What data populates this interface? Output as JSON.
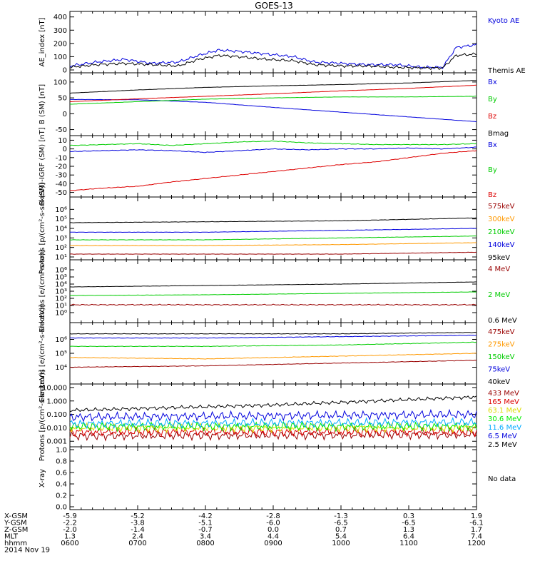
{
  "title": "GOES-13",
  "colors": {
    "blue": "#0000dd",
    "green": "#00cc00",
    "red": "#dd0000",
    "black": "#000000",
    "orange": "#ff9900",
    "darkred": "#990000",
    "yellow": "#dddd00",
    "cyan": "#00aaff",
    "purple": "#880088",
    "brightgreen": "#00ee00"
  },
  "chart_data": [
    {
      "type": "line",
      "ylabel": "AE_index [nT]",
      "ylim": [
        0,
        420
      ],
      "yscale": "linear",
      "yticks": [
        "400",
        "300",
        "200",
        "100",
        "0"
      ],
      "ytick_values": [
        400,
        300,
        200,
        100,
        0
      ],
      "series": [
        {
          "name": "Kyoto AE",
          "color": "#0000dd",
          "x": [
            6.0,
            6.4,
            6.8,
            7.2,
            7.6,
            7.9,
            8.2,
            8.5,
            8.9,
            9.3,
            9.6,
            10.0,
            10.4,
            10.8,
            11.2,
            11.5,
            11.7,
            12.0
          ],
          "y": [
            30,
            60,
            80,
            50,
            60,
            110,
            150,
            140,
            120,
            100,
            60,
            50,
            40,
            40,
            20,
            20,
            170,
            190
          ]
        },
        {
          "name": "Themis AE",
          "color": "#000000",
          "x": [
            6.0,
            6.4,
            6.8,
            7.2,
            7.6,
            7.9,
            8.2,
            8.5,
            8.9,
            9.3,
            9.6,
            10.0,
            10.4,
            10.8,
            11.2,
            11.5,
            11.7,
            12.0
          ],
          "y": [
            20,
            40,
            50,
            40,
            30,
            80,
            110,
            100,
            80,
            70,
            40,
            30,
            30,
            20,
            15,
            15,
            110,
            120
          ]
        }
      ]
    },
    {
      "type": "line",
      "ylabel": "B (SM) [nT]",
      "ylim": [
        -60,
        120
      ],
      "yscale": "linear",
      "yticks": [
        "100",
        "50",
        "0",
        "-50"
      ],
      "ytick_values": [
        100,
        50,
        0,
        -50
      ],
      "series": [
        {
          "name": "Bx",
          "color": "#0000dd",
          "x": [
            6,
            7,
            8,
            9,
            10,
            11,
            12
          ],
          "y": [
            45,
            44,
            36,
            20,
            5,
            -10,
            -25
          ]
        },
        {
          "name": "By",
          "color": "#00cc00",
          "x": [
            6,
            7,
            8,
            9,
            10,
            11,
            12
          ],
          "y": [
            30,
            38,
            46,
            50,
            53,
            53,
            55
          ]
        },
        {
          "name": "Bz",
          "color": "#dd0000",
          "x": [
            6,
            7,
            8,
            9,
            10,
            11,
            12
          ],
          "y": [
            38,
            47,
            55,
            63,
            72,
            80,
            90
          ]
        },
        {
          "name": "Bmag",
          "color": "#000000",
          "x": [
            6,
            7,
            8,
            9,
            10,
            11,
            12
          ],
          "y": [
            65,
            75,
            83,
            88,
            92,
            97,
            105
          ]
        }
      ]
    },
    {
      "type": "line",
      "ylabel": "B (SM)-IGRF (SM) [nT]",
      "ylim": [
        -52,
        12
      ],
      "yscale": "linear",
      "yticks": [
        "10",
        "0",
        "-10",
        "-20",
        "-30",
        "-40",
        "-50"
      ],
      "ytick_values": [
        10,
        0,
        -10,
        -20,
        -30,
        -40,
        -50
      ],
      "series": [
        {
          "name": "Bx",
          "color": "#0000dd",
          "x": [
            6,
            6.5,
            7,
            7.5,
            8,
            8.5,
            9,
            9.5,
            10,
            10.5,
            11,
            11.5,
            12
          ],
          "y": [
            -3,
            -2,
            -1,
            -2,
            -4,
            -2,
            0,
            -1,
            0,
            0,
            1,
            0,
            2
          ]
        },
        {
          "name": "By",
          "color": "#00cc00",
          "x": [
            6,
            6.5,
            7,
            7.5,
            8,
            8.5,
            9,
            9.5,
            10,
            10.5,
            11,
            11.5,
            12
          ],
          "y": [
            4,
            5,
            6,
            4,
            6,
            8,
            9,
            7,
            6,
            5,
            5,
            5,
            6
          ]
        },
        {
          "name": "Bz",
          "color": "#dd0000",
          "x": [
            6,
            6.5,
            7,
            7.5,
            8,
            8.5,
            9,
            9.5,
            10,
            10.5,
            11,
            11.5,
            12
          ],
          "y": [
            -48,
            -45,
            -43,
            -38,
            -34,
            -30,
            -26,
            -22,
            -18,
            -15,
            -10,
            -5,
            -2
          ]
        }
      ]
    },
    {
      "type": "line",
      "ylabel": "Protons [p/(cm²-s-sr-keV)]",
      "ylim": [
        1,
        7
      ],
      "yscale": "log",
      "yticks": [
        "10⁶",
        "10⁵",
        "10⁴",
        "10³",
        "10²",
        "10¹"
      ],
      "ytick_values": [
        6,
        5,
        4,
        3,
        2,
        1
      ],
      "series": [
        {
          "name": "575keV",
          "color": "#990000",
          "x": [
            6,
            8,
            10,
            12
          ],
          "y": [
            1.3,
            1.3,
            1.3,
            1.5
          ]
        },
        {
          "name": "300keV",
          "color": "#ff9900",
          "x": [
            6,
            8,
            10,
            12
          ],
          "y": [
            2.2,
            2.2,
            2.3,
            2.5
          ]
        },
        {
          "name": "210keV",
          "color": "#00cc00",
          "x": [
            6,
            8,
            10,
            12
          ],
          "y": [
            2.8,
            2.8,
            3.0,
            3.2
          ]
        },
        {
          "name": "140keV",
          "color": "#0000dd",
          "x": [
            6,
            8,
            10,
            12
          ],
          "y": [
            3.6,
            3.6,
            3.8,
            4.0
          ]
        },
        {
          "name": "95keV",
          "color": "#000000",
          "x": [
            6,
            8,
            10,
            12
          ],
          "y": [
            4.6,
            4.7,
            4.8,
            5.1
          ]
        }
      ]
    },
    {
      "type": "line",
      "ylabel": "Electrons [e/(cm²-s-sr)]",
      "ylim": [
        -1,
        7
      ],
      "yscale": "log",
      "yticks": [
        "10⁶",
        "10⁵",
        "10⁴",
        "10³",
        "10²",
        "10¹",
        "10⁰"
      ],
      "ytick_values": [
        6,
        5,
        4,
        3,
        2,
        1,
        0
      ],
      "series": [
        {
          "name": "4 MeV",
          "color": "#990000",
          "x": [
            6,
            8,
            10,
            12
          ],
          "y": [
            1.1,
            1.1,
            1.1,
            1.1
          ]
        },
        {
          "name": "2 MeV",
          "color": "#00cc00",
          "x": [
            6,
            8,
            10,
            12
          ],
          "y": [
            2.4,
            2.5,
            2.7,
            2.9
          ]
        },
        {
          "name": "0.6 MeV",
          "color": "#000000",
          "x": [
            6,
            8,
            10,
            12
          ],
          "y": [
            3.6,
            3.8,
            4.0,
            4.3
          ]
        }
      ]
    },
    {
      "type": "line",
      "ylabel": "Electrons [e/(cm²-s-sr-keV)]",
      "ylim": [
        3,
        7
      ],
      "yscale": "log",
      "yticks": [
        "10⁶",
        "10⁵",
        "10⁴"
      ],
      "ytick_values": [
        6,
        5,
        4
      ],
      "series": [
        {
          "name": "475keV",
          "color": "#990000",
          "x": [
            6,
            8,
            10,
            12
          ],
          "y": [
            4.0,
            4.1,
            4.3,
            4.5
          ]
        },
        {
          "name": "275keV",
          "color": "#ff9900",
          "x": [
            6,
            8,
            10,
            12
          ],
          "y": [
            4.7,
            4.6,
            4.8,
            5.0
          ]
        },
        {
          "name": "150keV",
          "color": "#00cc00",
          "x": [
            6,
            8,
            10,
            12
          ],
          "y": [
            5.5,
            5.5,
            5.6,
            5.8
          ]
        },
        {
          "name": "75keV",
          "color": "#0000dd",
          "x": [
            6,
            8,
            10,
            12
          ],
          "y": [
            6.1,
            6.1,
            6.2,
            6.3
          ]
        },
        {
          "name": "40keV",
          "color": "#000000",
          "x": [
            6,
            8,
            10,
            12
          ],
          "y": [
            6.4,
            6.4,
            6.4,
            6.5
          ]
        }
      ]
    },
    {
      "type": "line",
      "ylabel": "Protons [p/(cm²-s-sr-keV)]",
      "ylim": [
        -3.2,
        1.05
      ],
      "yscale": "log",
      "yticks": [
        "10.000",
        "1.000",
        "0.100",
        "0.010",
        "0.001"
      ],
      "ytick_values": [
        1,
        0,
        -1,
        -2,
        -3
      ],
      "series": [
        {
          "name": "433 MeV",
          "color": "#990000",
          "x": [
            6,
            12
          ],
          "y": [
            -2.6,
            -2.5
          ]
        },
        {
          "name": "165 MeV",
          "color": "#dd0000",
          "x": [
            6,
            12
          ],
          "y": [
            -2.3,
            -2.3
          ]
        },
        {
          "name": "63.1 MeV",
          "color": "#dddd00",
          "x": [
            6,
            12
          ],
          "y": [
            -2.0,
            -2.0
          ]
        },
        {
          "name": "30.6 MeV",
          "color": "#00ee00",
          "x": [
            6,
            12
          ],
          "y": [
            -1.9,
            -1.9
          ]
        },
        {
          "name": "11.6 MeV",
          "color": "#00aaff",
          "x": [
            6,
            12
          ],
          "y": [
            -1.7,
            -1.6
          ]
        },
        {
          "name": "6.5 MeV",
          "color": "#0000dd",
          "x": [
            6,
            12
          ],
          "y": [
            -1.2,
            -1.0
          ]
        },
        {
          "name": "2.5 MeV",
          "color": "#000000",
          "x": [
            6,
            9,
            12
          ],
          "y": [
            -0.7,
            -0.3,
            0.3
          ]
        }
      ]
    },
    {
      "type": "line",
      "ylabel": "X-ray",
      "ylim": [
        0,
        1.0
      ],
      "yscale": "linear",
      "yticks": [
        "1.0",
        "0.8",
        "0.6",
        "0.4",
        "0.2",
        "0.0"
      ],
      "ytick_values": [
        1.0,
        0.8,
        0.6,
        0.4,
        0.2,
        0.0
      ],
      "no_data_label": "No data",
      "series": []
    }
  ],
  "ephemeris": {
    "labels": [
      "X-GSM",
      "Y-GSM",
      "Z-GSM",
      "MLT",
      "hhmm"
    ],
    "date": "2014 Nov 19",
    "rows": [
      [
        "-5.9",
        "-5.2",
        "-4.2",
        "-2.8",
        "-1.3",
        "0.3",
        "1.9"
      ],
      [
        "-2.2",
        "-3.8",
        "-5.1",
        "-6.0",
        "-6.5",
        "-6.5",
        "-6.1"
      ],
      [
        "-2.0",
        "-1.4",
        "-0.7",
        "0.0",
        "0.7",
        "1.3",
        "1.7"
      ],
      [
        "1.3",
        "2.4",
        "3.4",
        "4.4",
        "5.4",
        "6.4",
        "7.4"
      ],
      [
        "0600",
        "0700",
        "0800",
        "0900",
        "1000",
        "1100",
        "1200"
      ]
    ]
  }
}
